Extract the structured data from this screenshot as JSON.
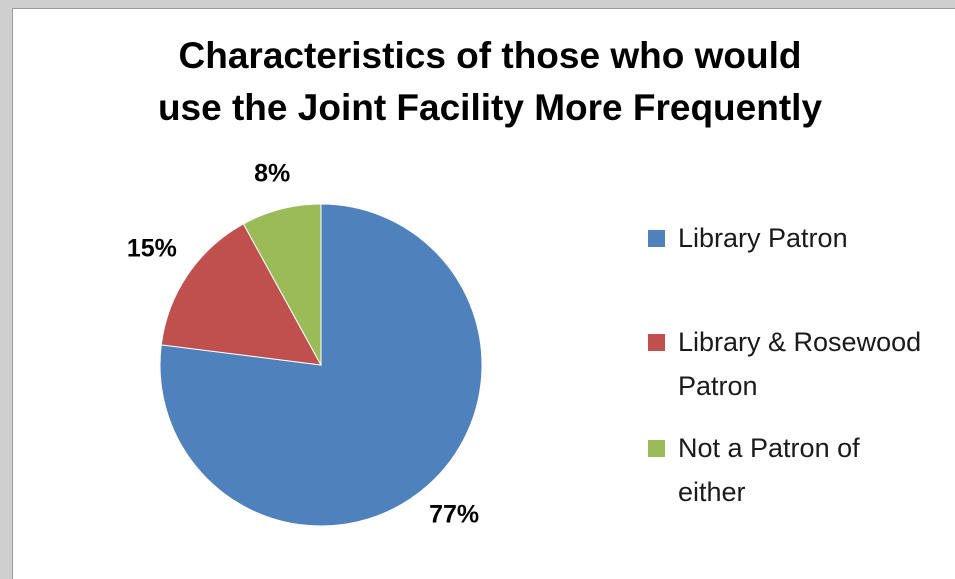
{
  "chart_data": {
    "type": "pie",
    "title": "Characteristics of those who would\nuse the Joint Facility More Frequently",
    "categories": [
      "Library Patron",
      "Library & Rosewood Patron",
      "Not a Patron of either"
    ],
    "values": [
      77,
      15,
      8
    ],
    "data_labels": [
      "77%",
      "15%",
      "8%"
    ],
    "colors": [
      "#4f81bd",
      "#c0504d",
      "#9bbb59"
    ],
    "legend_position": "right"
  }
}
